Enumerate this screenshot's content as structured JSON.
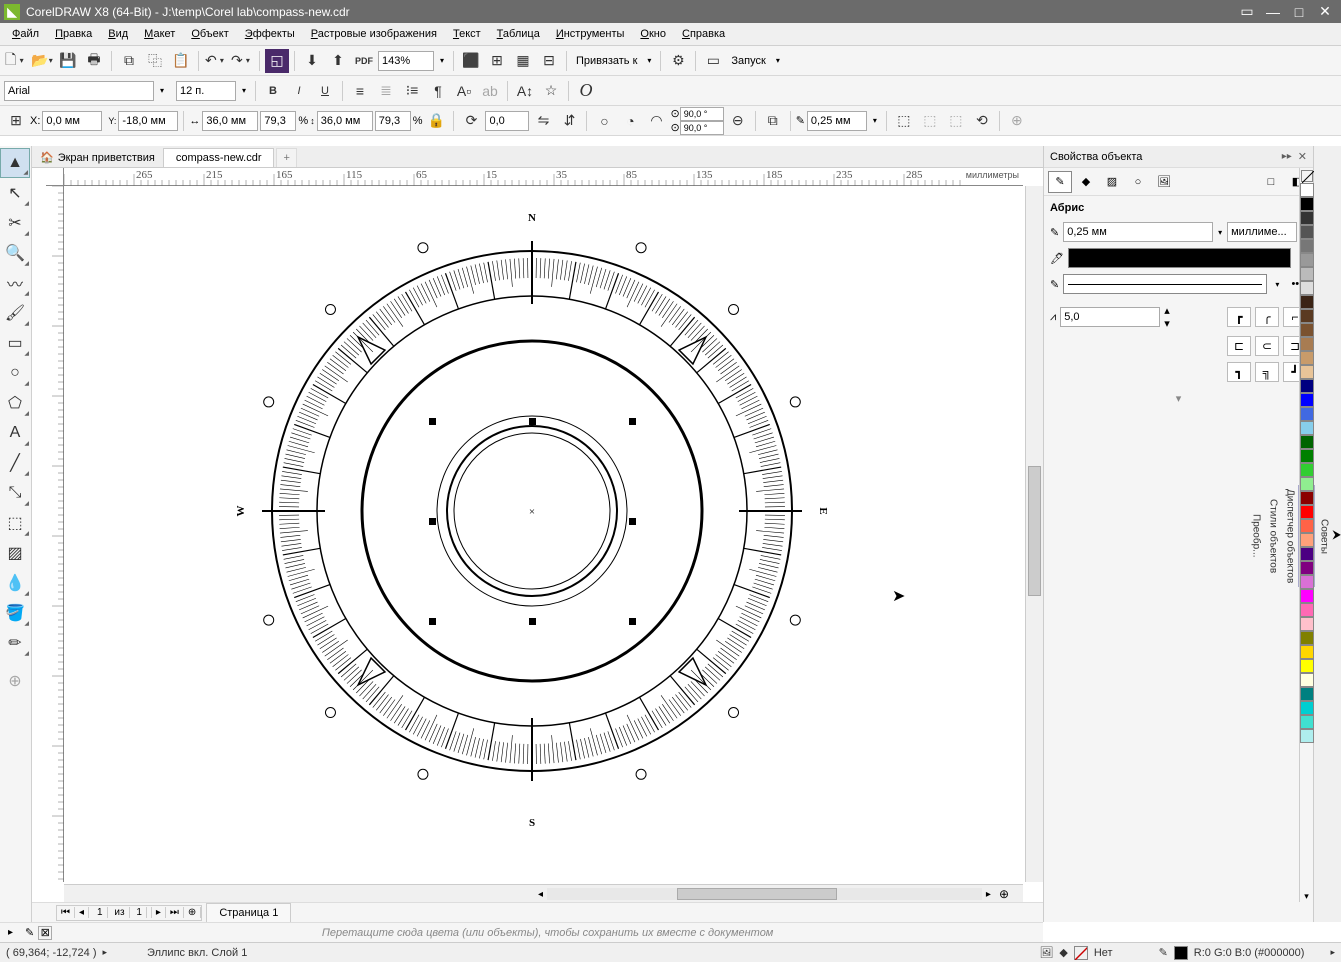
{
  "app": {
    "title": "CorelDRAW X8 (64-Bit) - J:\\temp\\Corel lab\\compass-new.cdr"
  },
  "menu": {
    "items": [
      "Файл",
      "Правка",
      "Вид",
      "Макет",
      "Объект",
      "Эффекты",
      "Растровые изображения",
      "Текст",
      "Таблица",
      "Инструменты",
      "Окно",
      "Справка"
    ]
  },
  "toolbar1": {
    "zoom": "143%",
    "snap_label": "Привязать к",
    "launch_label": "Запуск"
  },
  "toolbar2": {
    "font": "Arial",
    "fontsize": "12 п."
  },
  "toolbar3": {
    "x_label": "X:",
    "x_val": "0,0 мм",
    "y_label": "Y:",
    "y_val": "-18,0 мм",
    "w_val": "36,0 мм",
    "h_val": "36,0 мм",
    "sx": "79,3",
    "sy": "79,3",
    "pct": "%",
    "angle": "0,0",
    "rot1": "90,0 °",
    "rot2": "90,0 °",
    "outline": "0,25 мм"
  },
  "tabs": {
    "welcome": "Экран приветствия",
    "doc": "compass-new.cdr"
  },
  "ruler": {
    "units": "миллиметры"
  },
  "props": {
    "title": "Свойства объекта",
    "section": "Абрис",
    "width": "0,25 мм",
    "units": "миллиме...",
    "miter": "5,0"
  },
  "side_tabs": [
    "Советы",
    "Свойства объекта",
    "Диспетчер объектов",
    "Стили объектов",
    "Преобр..."
  ],
  "page": {
    "num": "1",
    "of_label": "из",
    "total": "1",
    "tab": "Страница 1"
  },
  "palette_hint": "Перетащите сюда цвета (или объекты), чтобы сохранить их вместе с документом",
  "status": {
    "coords": "( 69,364; -12,724 )",
    "obj": "Эллипс вкл. Слой 1",
    "fill_label": "Нет",
    "color_info": "R:0 G:0 B:0 (#000000)"
  },
  "compass": {
    "labels": {
      "n": "N",
      "s": "S",
      "e": "E",
      "w": "W"
    },
    "outer_r": 260,
    "tick_outer": 253,
    "tick_inner_major": 215,
    "tick_inner_minor": 233,
    "mid_r": 170,
    "inner_r1": 95,
    "inner_r2": 85,
    "inner_r3": 78,
    "dot_r": 285,
    "dot_size": 5,
    "sel_half": 100
  },
  "colors": [
    "#ffffff",
    "#000000",
    "#333333",
    "#555555",
    "#777777",
    "#999999",
    "#bbbbbb",
    "#dddddd",
    "#3b2416",
    "#5a3a22",
    "#7a5230",
    "#a87c52",
    "#c89b6a",
    "#e8c498",
    "#000080",
    "#0000ff",
    "#4169e1",
    "#87ceeb",
    "#006400",
    "#008000",
    "#32cd32",
    "#90ee90",
    "#8b0000",
    "#ff0000",
    "#ff6347",
    "#ffa07a",
    "#4b0082",
    "#800080",
    "#da70d6",
    "#ff00ff",
    "#ff69b4",
    "#ffc0cb",
    "#808000",
    "#ffd700",
    "#ffff00",
    "#ffffe0",
    "#008080",
    "#00ced1",
    "#40e0d0",
    "#afeeee"
  ]
}
